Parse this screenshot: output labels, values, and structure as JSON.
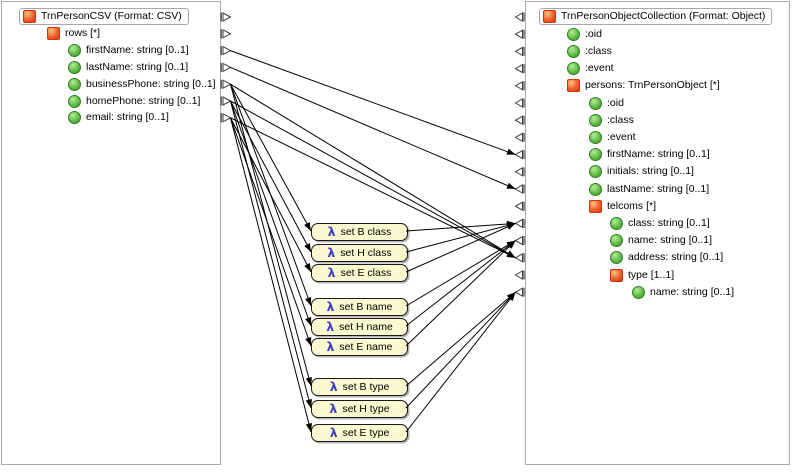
{
  "colors": {
    "element_icon_fill": "#ef6030",
    "element_icon_border": "#c63a10",
    "field_icon_fill": "#5cb844",
    "field_icon_border": "#2f7d22",
    "lambda_fill": "#fbf9d0",
    "lambda_border": "#1a1a1a",
    "lambda_symbol": "#3d3dc8",
    "connection_line": "#000000",
    "panel_border": "#a3aab2",
    "title_outline": "#a8a8a8"
  },
  "left_panel": {
    "title": "TrnPersonCSV (Format: CSV)",
    "items": [
      {
        "label": "rows [*]",
        "icon": "element",
        "depth": 1
      },
      {
        "label": "firstName: string [0..1]",
        "icon": "field",
        "depth": 2
      },
      {
        "label": "lastName: string [0..1]",
        "icon": "field",
        "depth": 2
      },
      {
        "label": "businessPhone: string [0..1]",
        "icon": "field",
        "depth": 2
      },
      {
        "label": "homePhone: string [0..1]",
        "icon": "field",
        "depth": 2
      },
      {
        "label": "email: string [0..1]",
        "icon": "field",
        "depth": 2
      }
    ]
  },
  "right_panel": {
    "title": "TrnPersonObjectCollection (Format: Object)",
    "items": [
      {
        "label": ":oid",
        "icon": "field",
        "depth": 1
      },
      {
        "label": ":class",
        "icon": "field",
        "depth": 1
      },
      {
        "label": ":event",
        "icon": "field",
        "depth": 1
      },
      {
        "label": "persons: TrnPersonObject [*]",
        "icon": "element",
        "depth": 1
      },
      {
        "label": ":oid",
        "icon": "field",
        "depth": 2
      },
      {
        "label": ":class",
        "icon": "field",
        "depth": 2
      },
      {
        "label": ":event",
        "icon": "field",
        "depth": 2
      },
      {
        "label": "firstName: string [0..1]",
        "icon": "field",
        "depth": 2
      },
      {
        "label": "initials: string [0..1]",
        "icon": "field",
        "depth": 2
      },
      {
        "label": "lastName: string [0..1]",
        "icon": "field",
        "depth": 2
      },
      {
        "label": "telcoms [*]",
        "icon": "element",
        "depth": 2
      },
      {
        "label": "class: string [0..1]",
        "icon": "field",
        "depth": 3
      },
      {
        "label": "name: string [0..1]",
        "icon": "field",
        "depth": 3
      },
      {
        "label": "address: string [0..1]",
        "icon": "field",
        "depth": 3
      },
      {
        "label": "type [1..1]",
        "icon": "element",
        "depth": 3
      },
      {
        "label": "name: string [0..1]",
        "icon": "field",
        "depth": 4
      }
    ]
  },
  "functions": [
    {
      "symbol": "λ",
      "label": "set B class"
    },
    {
      "symbol": "λ",
      "label": "set H class"
    },
    {
      "symbol": "λ",
      "label": "set E class"
    },
    {
      "symbol": "λ",
      "label": "set B name"
    },
    {
      "symbol": "λ",
      "label": "set H name"
    },
    {
      "symbol": "λ",
      "label": "set E name"
    },
    {
      "symbol": "λ",
      "label": "set B type"
    },
    {
      "symbol": "λ",
      "label": "set H type"
    },
    {
      "symbol": "λ",
      "label": "set E type"
    }
  ],
  "connections": [
    {
      "from": "left:2",
      "to": "right:8"
    },
    {
      "from": "left:3",
      "to": "right:10"
    },
    {
      "from": "left:4",
      "to": "right:14"
    },
    {
      "from": "left:5",
      "to": "right:14"
    },
    {
      "from": "left:6",
      "to": "right:14"
    },
    {
      "from": "left:4",
      "to": "fn:0"
    },
    {
      "from": "left:5",
      "to": "fn:1"
    },
    {
      "from": "left:6",
      "to": "fn:2"
    },
    {
      "from": "left:4",
      "to": "fn:3"
    },
    {
      "from": "left:5",
      "to": "fn:4"
    },
    {
      "from": "left:6",
      "to": "fn:5"
    },
    {
      "from": "left:4",
      "to": "fn:6"
    },
    {
      "from": "left:5",
      "to": "fn:7"
    },
    {
      "from": "left:6",
      "to": "fn:8"
    },
    {
      "from": "fn:0",
      "to": "right:12"
    },
    {
      "from": "fn:1",
      "to": "right:12"
    },
    {
      "from": "fn:2",
      "to": "right:12"
    },
    {
      "from": "fn:3",
      "to": "right:13"
    },
    {
      "from": "fn:4",
      "to": "right:13"
    },
    {
      "from": "fn:5",
      "to": "right:13"
    },
    {
      "from": "fn:6",
      "to": "right:16"
    },
    {
      "from": "fn:7",
      "to": "right:16"
    },
    {
      "from": "fn:8",
      "to": "right:16"
    }
  ]
}
